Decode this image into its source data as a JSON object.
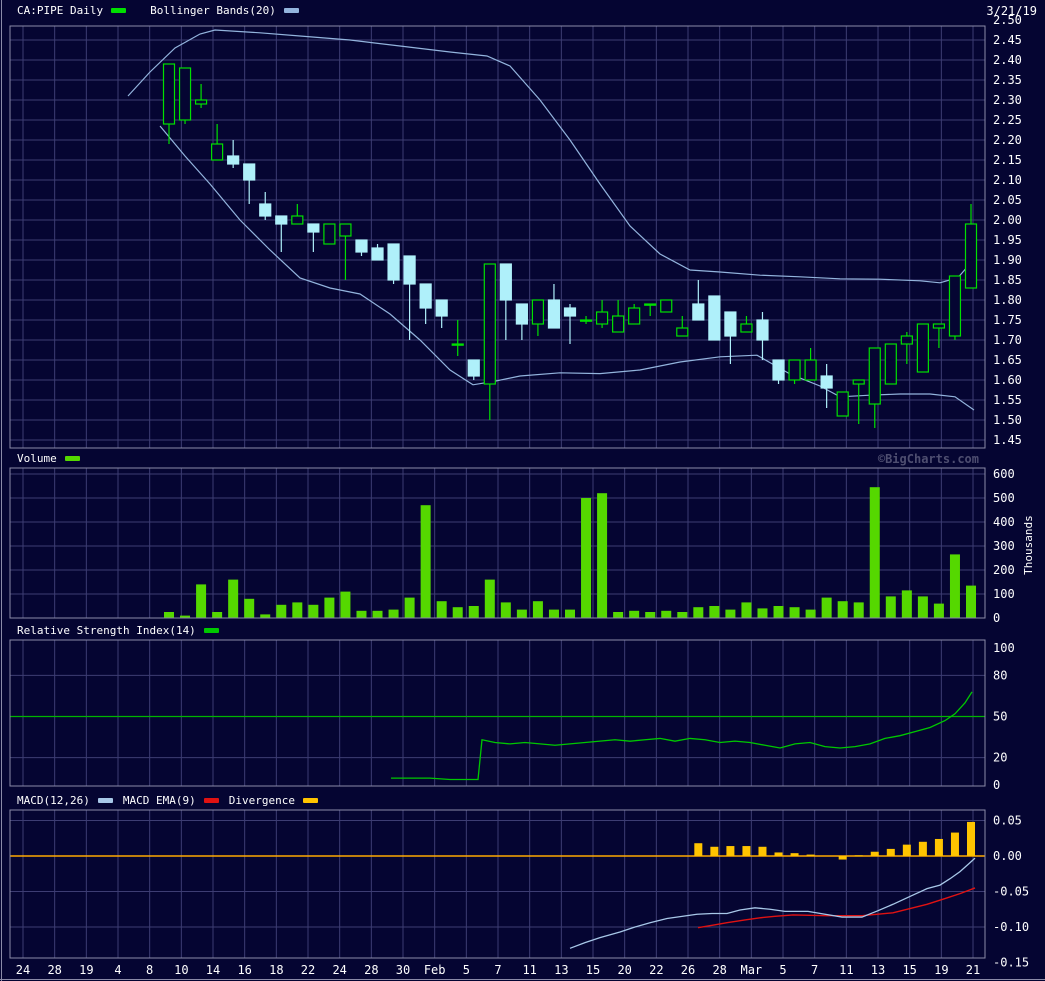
{
  "app": {
    "symbol_label": "CA:PIPE Daily",
    "date": "3/21/19",
    "watermark": "©BigCharts.com"
  },
  "colors": {
    "bg": "#050532",
    "panel_border": "#8b8ba8",
    "grid": "#3d3d73",
    "text": "#ffffff",
    "watermark_text": "#4e4e70",
    "candle_up": "#00e000",
    "candle_down": "#aff0fa",
    "bollinger": "#93b4dd",
    "volume": "#55d800",
    "rsi": "#00c800",
    "rsi_midline": "#00b400",
    "macd_line": "#a8c8e8",
    "macd_signal": "#e01212",
    "divergence": "#ffc400",
    "zero_line": "#ffaa00"
  },
  "x_axis": {
    "labels": [
      "24",
      "28",
      "19",
      "4",
      "8",
      "10",
      "14",
      "16",
      "18",
      "22",
      "24",
      "28",
      "30",
      "Feb",
      "5",
      "7",
      "11",
      "13",
      "15",
      "20",
      "22",
      "26",
      "28",
      "Mar",
      "5",
      "7",
      "11",
      "13",
      "15",
      "19",
      "21"
    ]
  },
  "chart_data": [
    {
      "type": "candlestick",
      "title": "CA:PIPE Daily",
      "overlay": "Bollinger Bands(20)",
      "ylim": [
        1.45,
        2.5
      ],
      "yticks": [
        "2.50",
        "2.45",
        "2.40",
        "2.35",
        "2.30",
        "2.25",
        "2.20",
        "2.15",
        "2.10",
        "2.05",
        "2.00",
        "1.95",
        "1.90",
        "1.85",
        "1.80",
        "1.75",
        "1.70",
        "1.65",
        "1.60",
        "1.55",
        "1.50",
        "1.45"
      ],
      "grid": true,
      "dates": [
        "1/9",
        "1/10",
        "1/11",
        "1/14",
        "1/15",
        "1/16",
        "1/17",
        "1/18",
        "1/21",
        "1/22",
        "1/23",
        "1/24",
        "1/25",
        "1/28",
        "1/29",
        "1/30",
        "1/31",
        "2/1",
        "2/4",
        "2/5",
        "2/6",
        "2/7",
        "2/8",
        "2/11",
        "2/12",
        "2/13",
        "2/14",
        "2/15",
        "2/19",
        "2/20",
        "2/21",
        "2/22",
        "2/25",
        "2/26",
        "2/27",
        "2/28",
        "3/1",
        "3/4",
        "3/5",
        "3/6",
        "3/7",
        "3/8",
        "3/11",
        "3/12",
        "3/13",
        "3/14",
        "3/15",
        "3/18",
        "3/19",
        "3/20",
        "3/21"
      ],
      "open": [
        2.24,
        2.25,
        2.29,
        2.15,
        2.16,
        2.14,
        2.04,
        2.01,
        1.99,
        1.99,
        1.94,
        1.96,
        1.95,
        1.93,
        1.94,
        1.91,
        1.84,
        1.8,
        1.69,
        1.65,
        1.59,
        1.89,
        1.79,
        1.74,
        1.8,
        1.78,
        1.75,
        1.74,
        1.72,
        1.74,
        1.79,
        1.77,
        1.71,
        1.79,
        1.81,
        1.77,
        1.72,
        1.75,
        1.65,
        1.6,
        1.6,
        1.61,
        1.51,
        1.59,
        1.54,
        1.59,
        1.69,
        1.62,
        1.73,
        1.71,
        1.83
      ],
      "high": [
        2.39,
        2.38,
        2.34,
        2.24,
        2.2,
        2.14,
        2.07,
        2.01,
        2.04,
        1.99,
        1.99,
        1.99,
        1.95,
        1.94,
        1.94,
        1.91,
        1.84,
        1.8,
        1.75,
        1.65,
        1.89,
        1.89,
        1.79,
        1.8,
        1.84,
        1.79,
        1.76,
        1.8,
        1.8,
        1.79,
        1.79,
        1.8,
        1.76,
        1.85,
        1.81,
        1.77,
        1.76,
        1.77,
        1.65,
        1.65,
        1.68,
        1.64,
        1.57,
        1.6,
        1.68,
        1.69,
        1.72,
        1.74,
        1.74,
        1.86,
        2.04
      ],
      "low": [
        2.19,
        2.24,
        2.28,
        2.15,
        2.13,
        2.04,
        2.0,
        1.92,
        1.99,
        1.92,
        1.94,
        1.85,
        1.91,
        1.9,
        1.84,
        1.7,
        1.74,
        1.73,
        1.66,
        1.6,
        1.5,
        1.7,
        1.7,
        1.71,
        1.73,
        1.69,
        1.74,
        1.73,
        1.72,
        1.74,
        1.76,
        1.77,
        1.71,
        1.75,
        1.7,
        1.64,
        1.72,
        1.65,
        1.59,
        1.59,
        1.6,
        1.53,
        1.51,
        1.49,
        1.48,
        1.59,
        1.64,
        1.62,
        1.68,
        1.7,
        1.83
      ],
      "close": [
        2.39,
        2.38,
        2.3,
        2.19,
        2.14,
        2.1,
        2.01,
        1.99,
        2.01,
        1.97,
        1.99,
        1.99,
        1.92,
        1.9,
        1.85,
        1.84,
        1.78,
        1.76,
        1.69,
        1.61,
        1.89,
        1.8,
        1.74,
        1.8,
        1.73,
        1.76,
        1.75,
        1.77,
        1.76,
        1.78,
        1.79,
        1.8,
        1.73,
        1.75,
        1.7,
        1.71,
        1.74,
        1.7,
        1.6,
        1.65,
        1.65,
        1.58,
        1.57,
        1.6,
        1.68,
        1.69,
        1.71,
        1.74,
        1.74,
        1.86,
        1.99
      ],
      "bollinger_upper": [
        [
          128,
          2.31
        ],
        [
          150,
          2.37
        ],
        [
          175,
          2.43
        ],
        [
          200,
          2.465
        ],
        [
          215,
          2.475
        ],
        [
          260,
          2.468
        ],
        [
          300,
          2.46
        ],
        [
          350,
          2.45
        ],
        [
          400,
          2.435
        ],
        [
          450,
          2.42
        ],
        [
          487,
          2.41
        ],
        [
          510,
          2.385
        ],
        [
          540,
          2.3
        ],
        [
          570,
          2.2
        ],
        [
          600,
          2.09
        ],
        [
          630,
          1.985
        ],
        [
          660,
          1.915
        ],
        [
          690,
          1.875
        ],
        [
          720,
          1.87
        ],
        [
          760,
          1.862
        ],
        [
          800,
          1.858
        ],
        [
          840,
          1.853
        ],
        [
          880,
          1.852
        ],
        [
          920,
          1.848
        ],
        [
          940,
          1.843
        ],
        [
          958,
          1.856
        ],
        [
          974,
          1.902
        ]
      ],
      "bollinger_lower": [
        [
          160,
          2.235
        ],
        [
          185,
          2.16
        ],
        [
          210,
          2.09
        ],
        [
          240,
          2.0
        ],
        [
          270,
          1.925
        ],
        [
          300,
          1.855
        ],
        [
          330,
          1.83
        ],
        [
          360,
          1.815
        ],
        [
          390,
          1.765
        ],
        [
          420,
          1.7
        ],
        [
          450,
          1.625
        ],
        [
          473,
          1.588
        ],
        [
          495,
          1.597
        ],
        [
          520,
          1.61
        ],
        [
          560,
          1.618
        ],
        [
          600,
          1.616
        ],
        [
          640,
          1.625
        ],
        [
          680,
          1.645
        ],
        [
          720,
          1.658
        ],
        [
          757,
          1.662
        ],
        [
          790,
          1.615
        ],
        [
          820,
          1.585
        ],
        [
          840,
          1.558
        ],
        [
          870,
          1.562
        ],
        [
          900,
          1.565
        ],
        [
          930,
          1.565
        ],
        [
          955,
          1.558
        ],
        [
          974,
          1.525
        ]
      ]
    },
    {
      "type": "bar",
      "title": "Volume",
      "ylabel": "Thousands",
      "ylim": [
        0,
        600
      ],
      "yticks": [
        "600",
        "500",
        "400",
        "300",
        "200",
        "100",
        "0"
      ],
      "values": [
        25,
        10,
        140,
        25,
        160,
        80,
        15,
        55,
        65,
        55,
        85,
        110,
        30,
        30,
        35,
        85,
        470,
        70,
        45,
        50,
        160,
        65,
        35,
        70,
        35,
        35,
        500,
        520,
        25,
        30,
        25,
        30,
        25,
        45,
        50,
        35,
        65,
        40,
        50,
        45,
        35,
        85,
        70,
        65,
        545,
        90,
        115,
        90,
        60,
        265,
        135
      ]
    },
    {
      "type": "line",
      "title": "Relative Strength Index(14)",
      "ylim": [
        0,
        100
      ],
      "yticks": [
        "100",
        "80",
        "50",
        "20",
        "0"
      ],
      "midline": 50,
      "points": [
        [
          391,
          5
        ],
        [
          410,
          5
        ],
        [
          430,
          5
        ],
        [
          450,
          4
        ],
        [
          465,
          4
        ],
        [
          478,
          4
        ],
        [
          482,
          33
        ],
        [
          495,
          31
        ],
        [
          510,
          30
        ],
        [
          525,
          31
        ],
        [
          540,
          30
        ],
        [
          555,
          29
        ],
        [
          570,
          30
        ],
        [
          585,
          31
        ],
        [
          600,
          32
        ],
        [
          615,
          33
        ],
        [
          630,
          32
        ],
        [
          645,
          33
        ],
        [
          660,
          34
        ],
        [
          675,
          32
        ],
        [
          690,
          34
        ],
        [
          705,
          33
        ],
        [
          720,
          31
        ],
        [
          735,
          32
        ],
        [
          750,
          31
        ],
        [
          765,
          29
        ],
        [
          780,
          27
        ],
        [
          795,
          30
        ],
        [
          810,
          31
        ],
        [
          825,
          28
        ],
        [
          840,
          27
        ],
        [
          855,
          28
        ],
        [
          870,
          30
        ],
        [
          885,
          34
        ],
        [
          900,
          36
        ],
        [
          915,
          39
        ],
        [
          930,
          42
        ],
        [
          945,
          47
        ],
        [
          955,
          52
        ],
        [
          965,
          60
        ],
        [
          972,
          68
        ]
      ]
    },
    {
      "type": "macd",
      "ylim": [
        -0.15,
        0.05
      ],
      "yticks": [
        "0.05",
        "0.00",
        "-0.05",
        "-0.10",
        "-0.15"
      ],
      "series": [
        {
          "name": "MACD(12,26)",
          "points": [
            [
              570,
              -0.13
            ],
            [
              585,
              -0.122
            ],
            [
              600,
              -0.115
            ],
            [
              620,
              -0.107
            ],
            [
              635,
              -0.1
            ],
            [
              650,
              -0.094
            ],
            [
              667,
              -0.088
            ],
            [
              682,
              -0.085
            ],
            [
              697,
              -0.082
            ],
            [
              712,
              -0.081
            ],
            [
              727,
              -0.081
            ],
            [
              740,
              -0.076
            ],
            [
              755,
              -0.073
            ],
            [
              770,
              -0.075
            ],
            [
              785,
              -0.078
            ],
            [
              808,
              -0.078
            ],
            [
              825,
              -0.082
            ],
            [
              842,
              -0.086
            ],
            [
              862,
              -0.086
            ],
            [
              878,
              -0.077
            ],
            [
              893,
              -0.068
            ],
            [
              910,
              -0.057
            ],
            [
              927,
              -0.046
            ],
            [
              940,
              -0.041
            ],
            [
              950,
              -0.032
            ],
            [
              960,
              -0.022
            ],
            [
              968,
              -0.012
            ],
            [
              975,
              -0.003
            ]
          ]
        },
        {
          "name": "MACD EMA(9)",
          "points": [
            [
              698,
              -0.101
            ],
            [
              715,
              -0.097
            ],
            [
              727,
              -0.094
            ],
            [
              745,
              -0.09
            ],
            [
              760,
              -0.087
            ],
            [
              775,
              -0.085
            ],
            [
              793,
              -0.083
            ],
            [
              810,
              -0.0835
            ],
            [
              827,
              -0.084
            ],
            [
              845,
              -0.084
            ],
            [
              862,
              -0.084
            ],
            [
              878,
              -0.082
            ],
            [
              893,
              -0.08
            ],
            [
              910,
              -0.074
            ],
            [
              927,
              -0.068
            ],
            [
              945,
              -0.06
            ],
            [
              960,
              -0.053
            ],
            [
              975,
              -0.045
            ]
          ]
        },
        {
          "name": "Divergence",
          "start_index": 33,
          "values": [
            0.018,
            0.013,
            0.014,
            0.014,
            0.013,
            0.005,
            0.004,
            0.002,
            0,
            -0.005,
            0.001,
            0.006,
            0.01,
            0.016,
            0.02,
            0.024,
            0.033,
            0.048
          ]
        }
      ]
    }
  ]
}
